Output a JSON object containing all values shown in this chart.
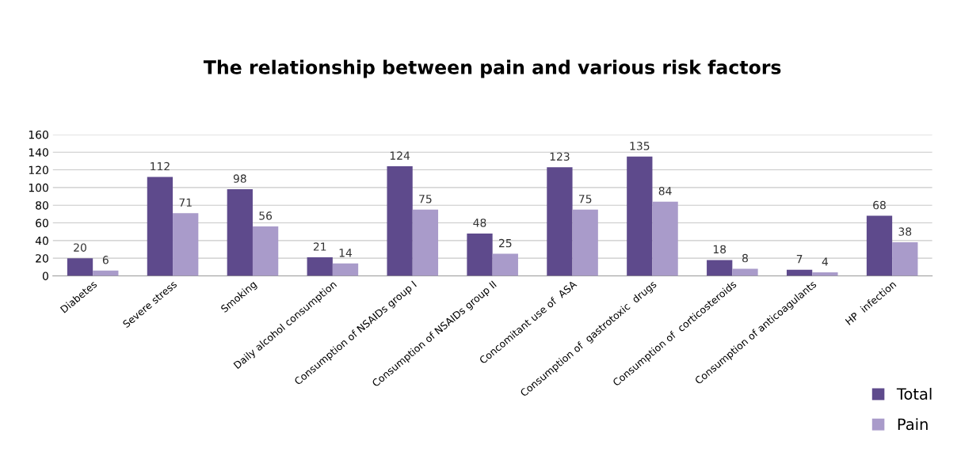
{
  "chart_data": {
    "type": "bar",
    "title": "The relationship between pain and various risk factors",
    "categories": [
      "Diabetes",
      "Severe stress",
      "Smoking",
      "Daily alcohol consumption",
      "Consumption of NSAIDs group I",
      "Consumption of NSAIDs group II",
      "Concomitant use of  ASA",
      "Consumption of  gastrotoxic  drugs",
      "Consumption of  corticosteroids",
      "Consumption of anticoagulants",
      "HP  infection"
    ],
    "series": [
      {
        "name": "Total",
        "color": "#5e4a8c",
        "values": [
          20,
          112,
          98,
          21,
          124,
          48,
          123,
          135,
          18,
          7,
          68
        ]
      },
      {
        "name": "Pain",
        "color": "#a99bca",
        "values": [
          6,
          71,
          56,
          14,
          75,
          25,
          75,
          84,
          8,
          4,
          38
        ]
      }
    ],
    "ylim": [
      0,
      160
    ],
    "yticks": [
      0,
      20,
      40,
      60,
      80,
      100,
      120,
      140,
      160
    ],
    "grid": "y",
    "legend": "bottom right",
    "data_labels": true
  }
}
